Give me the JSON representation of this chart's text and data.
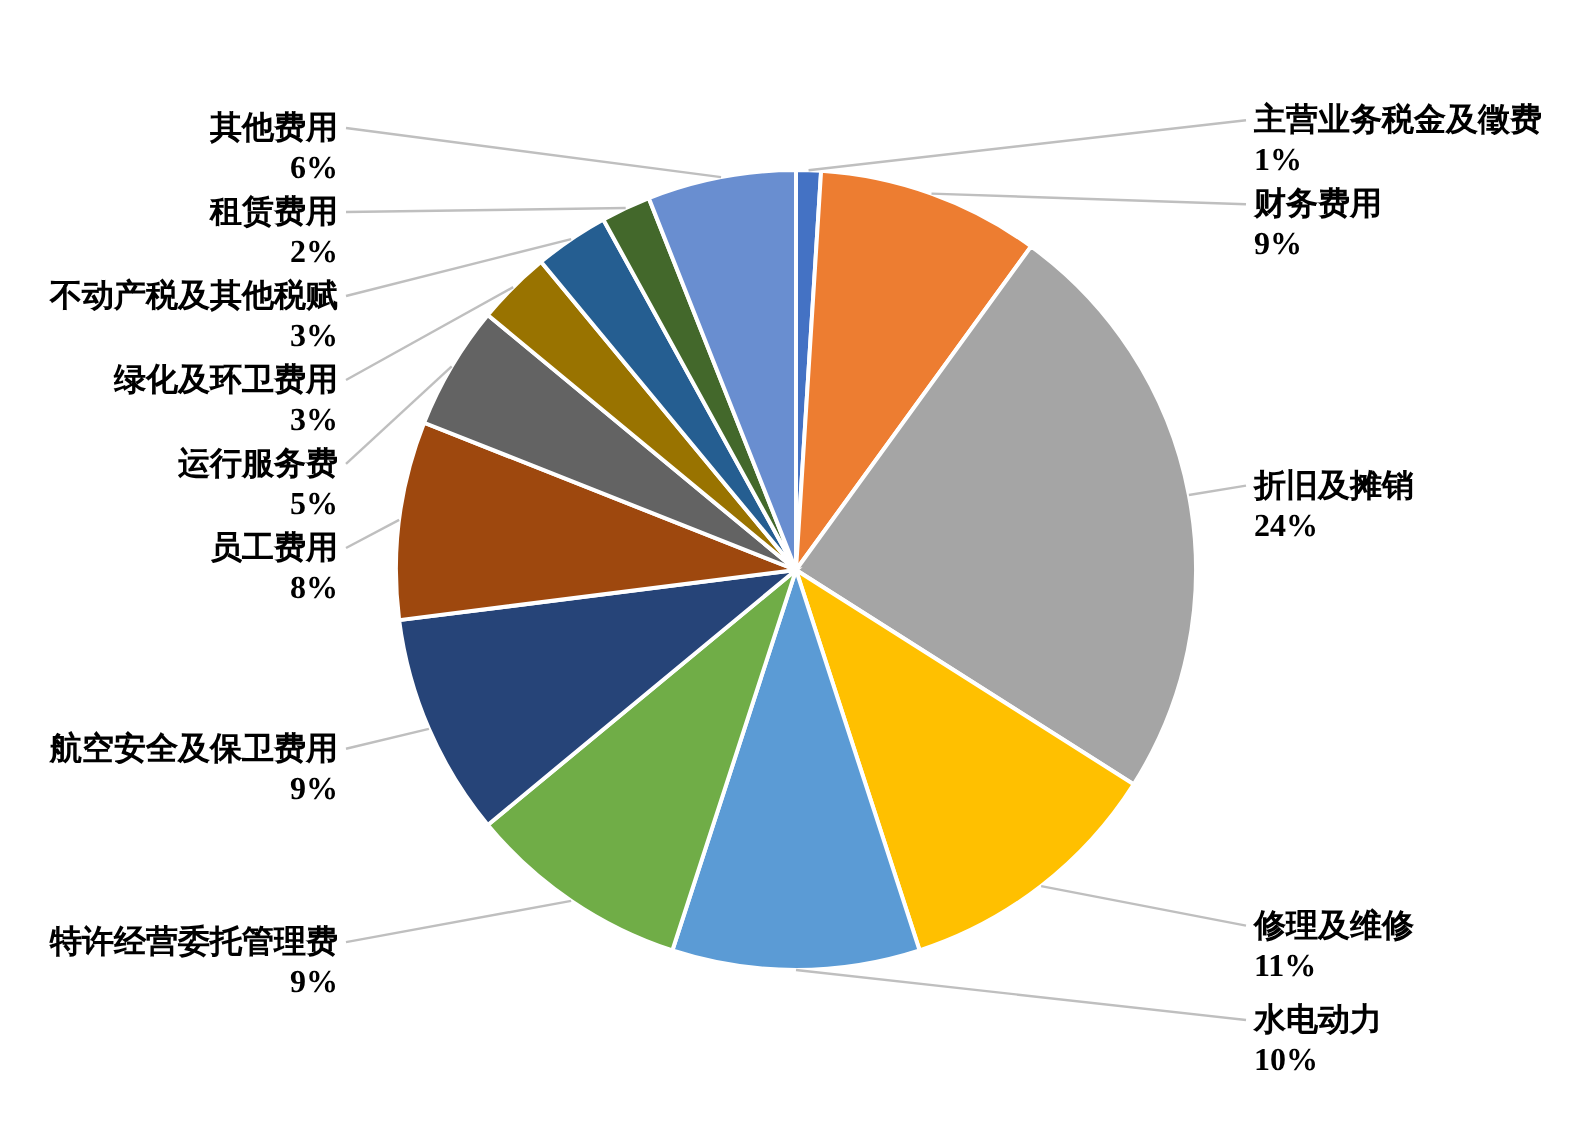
{
  "chart_data": {
    "type": "pie",
    "categories": [
      "主营业务税金及徵费",
      "财务费用",
      "折旧及摊销",
      "修理及维修",
      "水电动力",
      "特许经营委托管理费",
      "航空安全及保卫费用",
      "员工费用",
      "运行服务费",
      "绿化及环卫费用",
      "不动产税及其他税赋",
      "租赁费用",
      "其他费用"
    ],
    "values": [
      1,
      9,
      24,
      11,
      10,
      9,
      9,
      8,
      5,
      3,
      3,
      2,
      6
    ],
    "value_labels": [
      "1%",
      "9%",
      "24%",
      "11%",
      "10%",
      "9%",
      "9%",
      "8%",
      "5%",
      "3%",
      "3%",
      "2%",
      "6%"
    ],
    "colors": [
      "#4472c4",
      "#ed7d31",
      "#a5a5a5",
      "#ffc000",
      "#5b9bd5",
      "#70ad47",
      "#264478",
      "#9e480e",
      "#636363",
      "#997300",
      "#255e91",
      "#43682b",
      "#698ed0"
    ]
  }
}
